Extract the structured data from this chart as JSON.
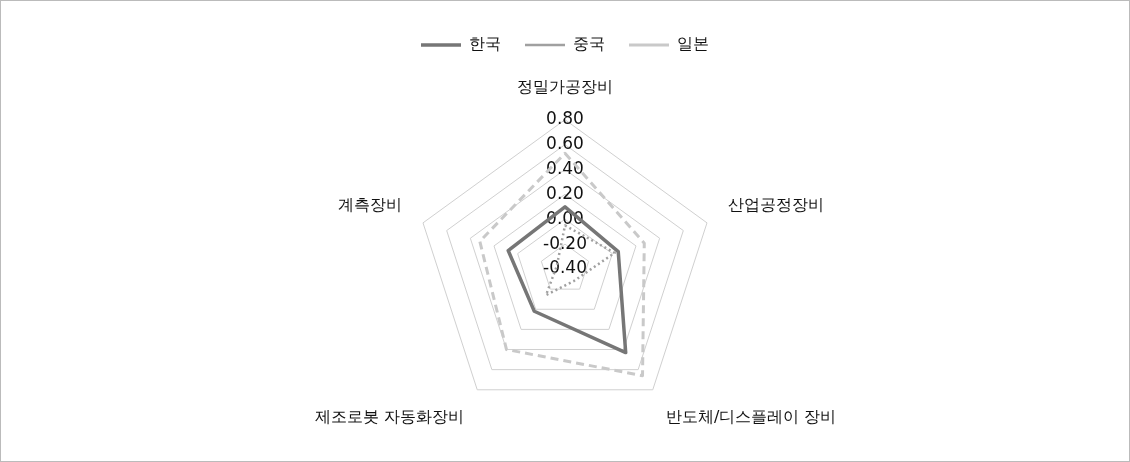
{
  "chart_data": {
    "type": "radar",
    "categories": [
      "정밀가공장비",
      "산업공정장비",
      "반도체/디스플레이 장비",
      "제조로봇 자동화장비",
      "계측장비"
    ],
    "series": [
      {
        "name": "한국",
        "color": "#767676",
        "line_style": "solid",
        "values": [
          0.1,
          0.05,
          0.43,
          0.02,
          0.08
        ]
      },
      {
        "name": "중국",
        "color": "#a0a0a0",
        "line_style": "dotted",
        "values": [
          -0.05,
          0.02,
          -0.28,
          -0.14,
          -0.33
        ]
      },
      {
        "name": "일본",
        "color": "#c9c9c9",
        "line_style": "dashed",
        "values": [
          0.53,
          0.27,
          0.66,
          0.4,
          0.32
        ]
      }
    ],
    "ylim": [
      -0.4,
      0.8
    ],
    "yticks": [
      {
        "value": -0.4,
        "label": "-0.40"
      },
      {
        "value": -0.2,
        "label": "-0.20"
      },
      {
        "value": 0,
        "label": "0.00"
      },
      {
        "value": 0.2,
        "label": "0.20"
      },
      {
        "value": 0.4,
        "label": "0.40"
      },
      {
        "value": 0.6,
        "label": "0.60"
      },
      {
        "value": 0.8,
        "label": "0.80"
      }
    ],
    "grid": true,
    "legend": "top"
  }
}
